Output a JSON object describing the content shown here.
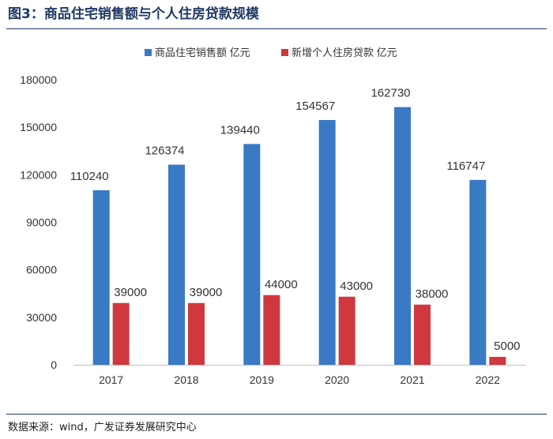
{
  "figure": {
    "title": "图3：商品住宅销售额与个人住房贷款规模",
    "source": "数据来源：wind，广发证券发展研究中心"
  },
  "colors": {
    "series_blue": "#3a79c4",
    "series_red": "#d0383f",
    "title_blue": "#1f3864"
  },
  "chart_data": {
    "type": "bar",
    "title": "",
    "xlabel": "",
    "ylabel": "",
    "categories": [
      "2017",
      "2018",
      "2019",
      "2020",
      "2021",
      "2022"
    ],
    "series": [
      {
        "name": "商品住宅销售额 亿元",
        "color": "#3a79c4",
        "values": [
          110240,
          126374,
          139440,
          154567,
          162730,
          116747
        ]
      },
      {
        "name": "新增个人住房贷款 亿元",
        "color": "#d0383f",
        "values": [
          39000,
          39000,
          44000,
          43000,
          38000,
          5000
        ]
      }
    ],
    "ylim": [
      0,
      180000
    ],
    "yticks": [
      0,
      30000,
      60000,
      90000,
      120000,
      150000,
      180000
    ],
    "grid": false,
    "legend_position": "top-center",
    "data_labels": true
  }
}
